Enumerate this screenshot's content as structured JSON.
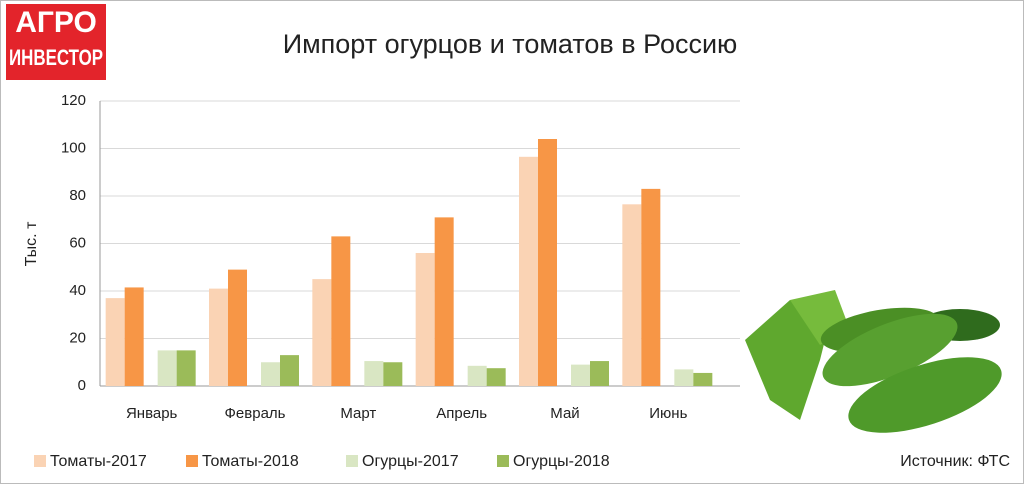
{
  "logo": {
    "line1": "АГРО",
    "line2": "ИНВЕСТОР"
  },
  "chart_data": {
    "type": "bar",
    "title": "Импорт огурцов и томатов в Россию",
    "y_label": "Тыс. т",
    "source": "Источник: ФТС",
    "categories": [
      "Январь",
      "Февраль",
      "Март",
      "Апрель",
      "Май",
      "Июнь"
    ],
    "series": [
      {
        "name": "Томаты-2017",
        "color": "#fad3b4",
        "values": [
          37,
          41,
          45,
          56,
          96.5,
          76.5
        ]
      },
      {
        "name": "Томаты-2018",
        "color": "#f79646",
        "values": [
          41.5,
          49,
          63,
          71,
          104,
          83
        ]
      },
      {
        "name": "Огурцы-2017",
        "color": "#d9e6c3",
        "values": [
          15,
          10,
          10.5,
          8.5,
          9,
          7
        ]
      },
      {
        "name": "Огурцы-2018",
        "color": "#9bbb59",
        "values": [
          15,
          13,
          10,
          7.5,
          10.5,
          5.5
        ]
      }
    ],
    "ylim": [
      0,
      120
    ],
    "yticks": [
      0,
      20,
      40,
      60,
      80,
      100,
      120
    ],
    "grid": true,
    "legend": "bottom"
  }
}
